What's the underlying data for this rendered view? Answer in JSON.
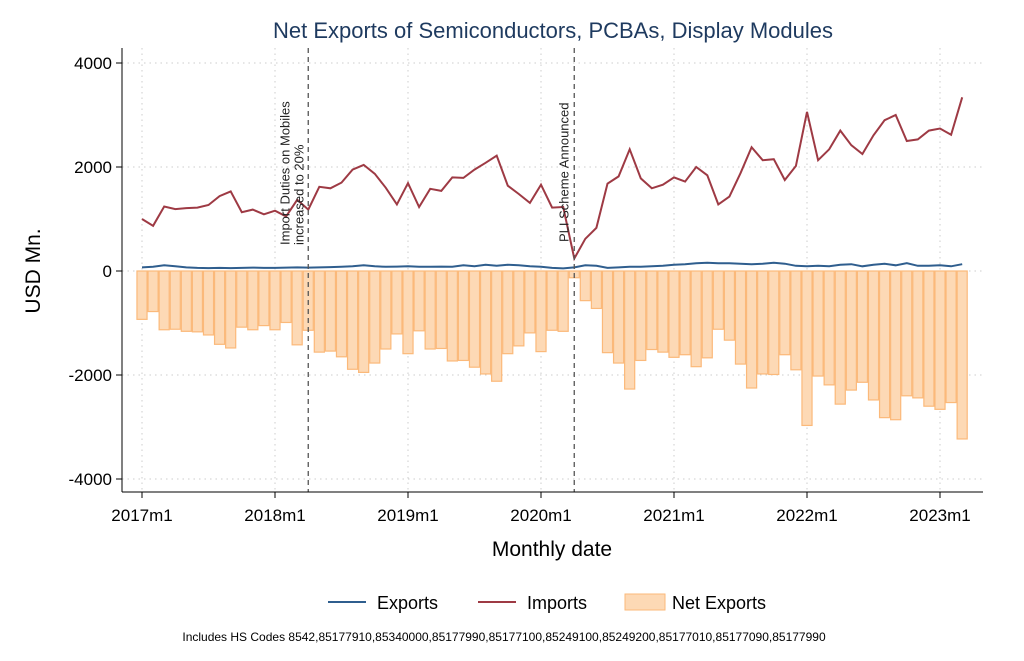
{
  "chart_data": {
    "type": "bar+line",
    "title": "Net Exports of Semiconductors, PCBAs, Display Modules",
    "xlabel": "Monthly date",
    "ylabel": "USD Mn.",
    "ylim": [
      -4000,
      4000
    ],
    "yticks": [
      -4000,
      -2000,
      0,
      2000,
      4000
    ],
    "xticks": [
      "2017m1",
      "2018m1",
      "2019m1",
      "2020m1",
      "2021m1",
      "2022m1",
      "2023m1"
    ],
    "x_start": "2017m1",
    "x_end": "2023m3",
    "grid": true,
    "legend_position": "bottom",
    "series": [
      {
        "name": "Exports",
        "type": "line",
        "color": "#2f5e8e",
        "values": [
          70,
          80,
          110,
          90,
          70,
          60,
          55,
          60,
          55,
          60,
          65,
          60,
          60,
          65,
          70,
          65,
          70,
          75,
          80,
          90,
          110,
          90,
          80,
          85,
          90,
          80,
          80,
          85,
          80,
          110,
          90,
          120,
          100,
          120,
          110,
          90,
          80,
          60,
          50,
          70,
          110,
          100,
          60,
          70,
          80,
          80,
          90,
          100,
          120,
          130,
          150,
          160,
          150,
          150,
          140,
          130,
          140,
          160,
          140,
          100,
          90,
          100,
          90,
          120,
          130,
          90,
          120,
          140,
          110,
          150,
          100,
          100,
          110,
          90,
          130
        ]
      },
      {
        "name": "Imports",
        "type": "line",
        "color": "#9e3a44",
        "values": [
          1000,
          870,
          1240,
          1190,
          1210,
          1220,
          1270,
          1440,
          1530,
          1130,
          1180,
          1090,
          1160,
          1050,
          1370,
          1180,
          1620,
          1590,
          1700,
          1950,
          2040,
          1870,
          1600,
          1280,
          1690,
          1230,
          1580,
          1540,
          1800,
          1790,
          1950,
          2080,
          2220,
          1640,
          1480,
          1310,
          1660,
          1220,
          1230,
          240,
          620,
          830,
          1680,
          1820,
          2340,
          1780,
          1590,
          1660,
          1800,
          1720,
          2000,
          1840,
          1280,
          1430,
          1880,
          2380,
          2130,
          2150,
          1750,
          2020,
          3060,
          2130,
          2340,
          2700,
          2420,
          2250,
          2610,
          2900,
          3000,
          2500,
          2530,
          2700,
          2740,
          2620,
          3340
        ]
      },
      {
        "name": "Net Exports",
        "type": "bar",
        "color": "#fdd9b5",
        "edge": "#fbb97a",
        "values": [
          -930,
          -780,
          -1130,
          -1120,
          -1160,
          -1170,
          -1230,
          -1410,
          -1480,
          -1080,
          -1130,
          -1050,
          -1130,
          -990,
          -1420,
          -1140,
          -1560,
          -1540,
          -1650,
          -1890,
          -1950,
          -1770,
          -1500,
          -1210,
          -1590,
          -1150,
          -1500,
          -1490,
          -1730,
          -1720,
          -1850,
          -1980,
          -2120,
          -1590,
          -1440,
          -1190,
          -1550,
          -1140,
          -1160,
          -130,
          -570,
          -720,
          -1570,
          -1770,
          -2270,
          -1720,
          -1510,
          -1560,
          -1660,
          -1610,
          -1840,
          -1670,
          -1120,
          -1330,
          -1790,
          -2250,
          -1980,
          -1990,
          -1610,
          -1900,
          -2970,
          -2020,
          -2190,
          -2560,
          -2290,
          -2140,
          -2480,
          -2820,
          -2860,
          -2400,
          -2440,
          -2600,
          -2660,
          -2530,
          -3230
        ]
      }
    ],
    "annotations": [
      {
        "at": "2018m4",
        "line1": "Import Duties on Mobiles",
        "line2": "increased to 20%"
      },
      {
        "at": "2020m4",
        "line1": "PLI Scheme Announced",
        "line2": ""
      }
    ],
    "footnote": "Includes HS Codes 8542,85177910,85340000,85177990,85177100,85249100,85249200,85177010,85177090,85177990"
  }
}
